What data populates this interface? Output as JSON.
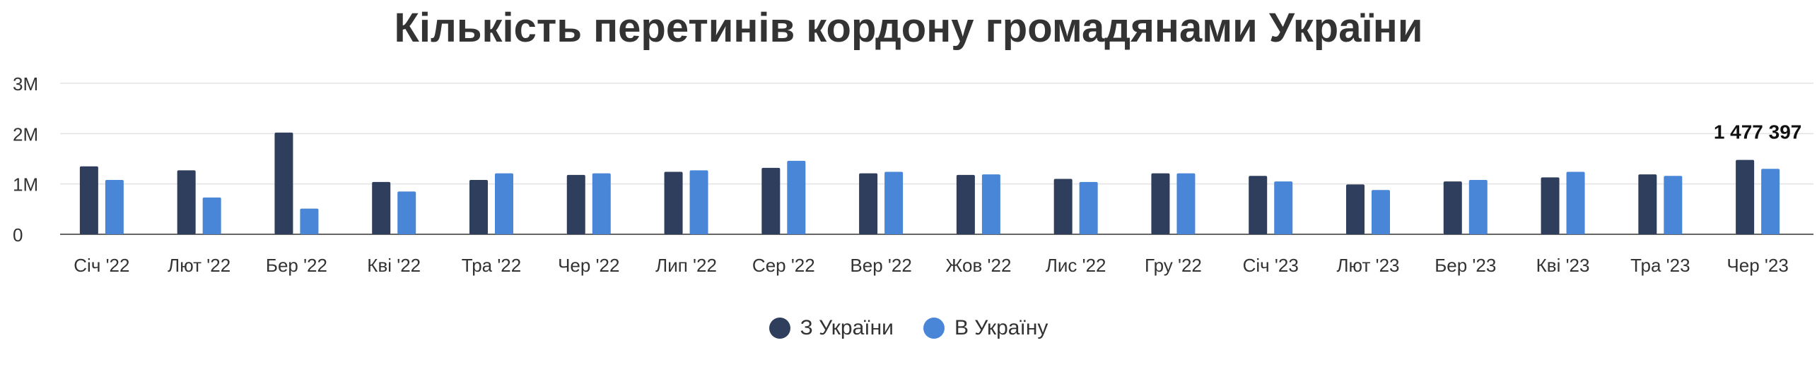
{
  "chart_data": {
    "type": "bar",
    "title": "Кількість перетинів кордону громадянами України",
    "categories": [
      "Січ '22",
      "Лют '22",
      "Бер '22",
      "Кві '22",
      "Тра '22",
      "Чер '22",
      "Лип '22",
      "Сер '22",
      "Вер '22",
      "Жов '22",
      "Лис '22",
      "Гру '22",
      "Січ '23",
      "Лют '23",
      "Бер '23",
      "Кві '23",
      "Тра '23",
      "Чер '23"
    ],
    "series": [
      {
        "name": "З України",
        "color": "#2f3e5c",
        "values": [
          1350000,
          1270000,
          2020000,
          1040000,
          1080000,
          1180000,
          1240000,
          1320000,
          1210000,
          1180000,
          1100000,
          1210000,
          1160000,
          990000,
          1050000,
          1130000,
          1190000,
          1477397
        ]
      },
      {
        "name": "В Україну",
        "color": "#4a86d8",
        "values": [
          1080000,
          730000,
          510000,
          850000,
          1210000,
          1210000,
          1270000,
          1460000,
          1240000,
          1190000,
          1040000,
          1210000,
          1050000,
          880000,
          1080000,
          1240000,
          1160000,
          1300000
        ]
      }
    ],
    "ylim": [
      0,
      3000000
    ],
    "yticks": [
      {
        "value": 0,
        "label": "0"
      },
      {
        "value": 1000000,
        "label": "1M"
      },
      {
        "value": 2000000,
        "label": "2M"
      },
      {
        "value": 3000000,
        "label": "3M"
      }
    ],
    "annotation": {
      "series_index": 0,
      "category_index": 17,
      "text": "1 477 397"
    },
    "grid": true,
    "legend_position": "bottom"
  }
}
